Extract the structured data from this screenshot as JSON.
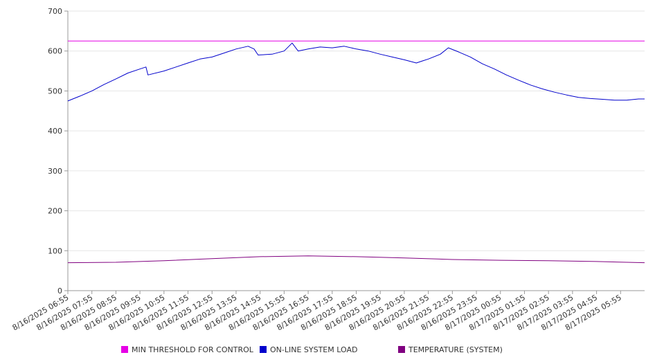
{
  "chart_data": {
    "type": "line",
    "ylim": [
      0,
      700
    ],
    "yticks": [
      0,
      100,
      200,
      300,
      400,
      500,
      600,
      700
    ],
    "x_tick_labels": [
      "8/16/2025 06:55",
      "8/16/2025 07:55",
      "8/16/2025 08:55",
      "8/16/2025 09:55",
      "8/16/2025 10:55",
      "8/16/2025 11:55",
      "8/16/2025 12:55",
      "8/16/2025 13:55",
      "8/16/2025 14:55",
      "8/16/2025 15:55",
      "8/16/2025 16:55",
      "8/16/2025 17:55",
      "8/16/2025 18:55",
      "8/16/2025 19:55",
      "8/16/2025 20:55",
      "8/16/2025 21:55",
      "8/16/2025 22:55",
      "8/16/2025 23:55",
      "8/17/2025 00:55",
      "8/17/2025 01:55",
      "8/17/2025 02:55",
      "8/17/2025 03:55",
      "8/17/2025 04:55",
      "8/17/2025 05:55"
    ],
    "x_start": "8/16/2025 06:55",
    "x_end": "8/17/2025 06:55",
    "grid": true,
    "legend_position": "bottom",
    "series": [
      {
        "name": "MIN THRESHOLD FOR CONTROL",
        "color": "#e600e6",
        "points": [
          [
            "8/16/2025 06:55",
            625
          ],
          [
            "8/17/2025 06:55",
            625
          ]
        ]
      },
      {
        "name": "ON-LINE SYSTEM LOAD",
        "color": "#0000cc",
        "points": [
          [
            "8/16/2025 06:55",
            475
          ],
          [
            "8/16/2025 07:25",
            487
          ],
          [
            "8/16/2025 07:55",
            500
          ],
          [
            "8/16/2025 08:25",
            516
          ],
          [
            "8/16/2025 08:55",
            530
          ],
          [
            "8/16/2025 09:25",
            545
          ],
          [
            "8/16/2025 09:55",
            555
          ],
          [
            "8/16/2025 10:10",
            560
          ],
          [
            "8/16/2025 10:15",
            540
          ],
          [
            "8/16/2025 10:55",
            550
          ],
          [
            "8/16/2025 11:25",
            560
          ],
          [
            "8/16/2025 11:55",
            570
          ],
          [
            "8/16/2025 12:25",
            580
          ],
          [
            "8/16/2025 12:55",
            585
          ],
          [
            "8/16/2025 13:25",
            595
          ],
          [
            "8/16/2025 13:55",
            605
          ],
          [
            "8/16/2025 14:25",
            612
          ],
          [
            "8/16/2025 14:40",
            605
          ],
          [
            "8/16/2025 14:50",
            590
          ],
          [
            "8/16/2025 15:25",
            592
          ],
          [
            "8/16/2025 15:55",
            600
          ],
          [
            "8/16/2025 16:15",
            620
          ],
          [
            "8/16/2025 16:30",
            600
          ],
          [
            "8/16/2025 16:55",
            605
          ],
          [
            "8/16/2025 17:25",
            610
          ],
          [
            "8/16/2025 17:55",
            608
          ],
          [
            "8/16/2025 18:25",
            612
          ],
          [
            "8/16/2025 18:55",
            605
          ],
          [
            "8/16/2025 19:25",
            600
          ],
          [
            "8/16/2025 19:55",
            592
          ],
          [
            "8/16/2025 20:25",
            585
          ],
          [
            "8/16/2025 20:55",
            578
          ],
          [
            "8/16/2025 21:25",
            570
          ],
          [
            "8/16/2025 21:40",
            575
          ],
          [
            "8/16/2025 21:55",
            580
          ],
          [
            "8/16/2025 22:25",
            592
          ],
          [
            "8/16/2025 22:45",
            608
          ],
          [
            "8/16/2025 23:10",
            598
          ],
          [
            "8/16/2025 23:40",
            585
          ],
          [
            "8/17/2025 00:10",
            568
          ],
          [
            "8/17/2025 00:40",
            555
          ],
          [
            "8/17/2025 01:10",
            540
          ],
          [
            "8/17/2025 01:40",
            527
          ],
          [
            "8/17/2025 02:10",
            515
          ],
          [
            "8/17/2025 02:40",
            505
          ],
          [
            "8/17/2025 03:10",
            497
          ],
          [
            "8/17/2025 03:40",
            490
          ],
          [
            "8/17/2025 04:10",
            484
          ],
          [
            "8/17/2025 04:40",
            481
          ],
          [
            "8/17/2025 05:10",
            479
          ],
          [
            "8/17/2025 05:40",
            477
          ],
          [
            "8/17/2025 06:10",
            477
          ],
          [
            "8/17/2025 06:40",
            480
          ],
          [
            "8/17/2025 06:55",
            480
          ]
        ]
      },
      {
        "name": "TEMPERATURE (SYSTEM)",
        "color": "#800080",
        "points": [
          [
            "8/16/2025 06:55",
            70
          ],
          [
            "8/16/2025 08:55",
            71
          ],
          [
            "8/16/2025 10:55",
            75
          ],
          [
            "8/16/2025 12:55",
            80
          ],
          [
            "8/16/2025 14:55",
            85
          ],
          [
            "8/16/2025 16:55",
            87
          ],
          [
            "8/16/2025 18:55",
            85
          ],
          [
            "8/16/2025 20:55",
            82
          ],
          [
            "8/16/2025 22:55",
            78
          ],
          [
            "8/17/2025 00:55",
            76
          ],
          [
            "8/17/2025 02:55",
            75
          ],
          [
            "8/17/2025 04:55",
            73
          ],
          [
            "8/17/2025 06:55",
            70
          ]
        ]
      }
    ]
  }
}
